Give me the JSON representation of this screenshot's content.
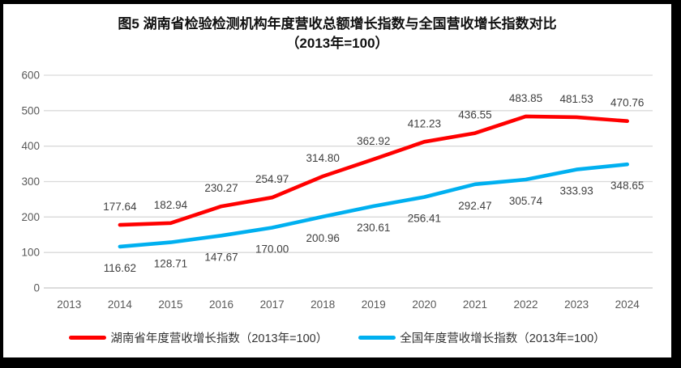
{
  "title": {
    "line1": "图5 湖南省检验检测机构年度营收总额增长指数与全国营收增长指数对比",
    "line2": "（2013年=100）"
  },
  "chart_data": {
    "type": "line",
    "categories": [
      2013,
      2014,
      2015,
      2016,
      2017,
      2018,
      2019,
      2020,
      2021,
      2022,
      2023,
      2024
    ],
    "series": [
      {
        "name": "湖南省年度营收增长指数（2013年=100）",
        "color": "#FF0000",
        "label_position": "above",
        "values": [
          null,
          177.64,
          182.94,
          230.27,
          254.97,
          314.8,
          362.92,
          412.23,
          436.55,
          483.85,
          481.53,
          470.76
        ]
      },
      {
        "name": "全国年度营收增长指数（2013年=100）",
        "color": "#00B0F0",
        "label_position": "below",
        "values": [
          null,
          116.62,
          128.71,
          147.67,
          170.0,
          200.96,
          230.61,
          256.41,
          292.47,
          305.74,
          333.93,
          348.65
        ]
      }
    ],
    "ylim": [
      0,
      600
    ],
    "yticks": [
      0,
      100,
      200,
      300,
      400,
      500,
      600
    ],
    "grid": true,
    "gridline_color": "#D9D9D9",
    "axis_line_color": "#C6C6C6",
    "legend_position": "bottom"
  }
}
